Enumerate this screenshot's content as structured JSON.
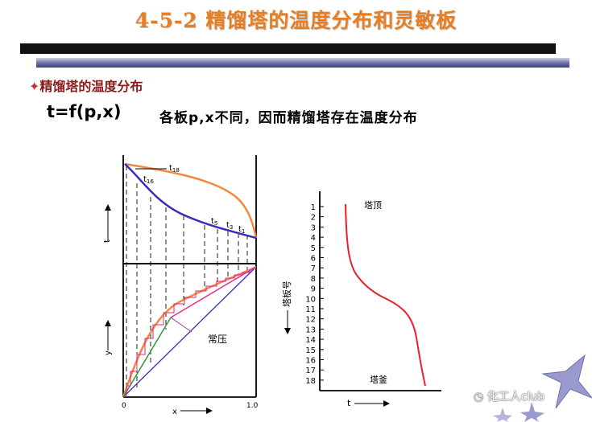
{
  "slide": {
    "title": "4-5-2  精馏塔的温度分布和灵敏板",
    "section_heading": "精馏塔的温度分布",
    "formula": "t=f(p,x)",
    "description": "各板p,x不同，因而精馏塔存在温度分布"
  },
  "left_diagram": {
    "top_panel": {
      "y_axis_label": "t",
      "curve_labels": [
        {
          "name": "t",
          "sub": "18"
        },
        {
          "name": "t",
          "sub": "16"
        },
        {
          "name": "t",
          "sub": "5"
        },
        {
          "name": "t",
          "sub": "3"
        },
        {
          "name": "t",
          "sub": "1"
        }
      ]
    },
    "bottom_panel": {
      "y_axis_label": "y",
      "x_axis_label": "x",
      "x_tick_start": "0",
      "x_tick_end": "1.0",
      "condition_label": "常压"
    }
  },
  "right_diagram": {
    "y_axis_label": "塔板号",
    "x_axis_label": "t",
    "plate_numbers": [
      "1",
      "2",
      "3",
      "4",
      "5",
      "6",
      "7",
      "8",
      "9",
      "10",
      "11",
      "12",
      "13",
      "14",
      "15",
      "16",
      "17",
      "18"
    ],
    "top_label": "塔顶",
    "bottom_label": "塔釜"
  },
  "watermark": {
    "text": "化工人club"
  },
  "colors": {
    "title": "#e87d22",
    "heading": "#8b1a1a",
    "top_curve": "#f08a40",
    "bottom_curve": "#3a2bbf",
    "profile_curve": "#e8202a",
    "star": "#9a9ad0"
  }
}
